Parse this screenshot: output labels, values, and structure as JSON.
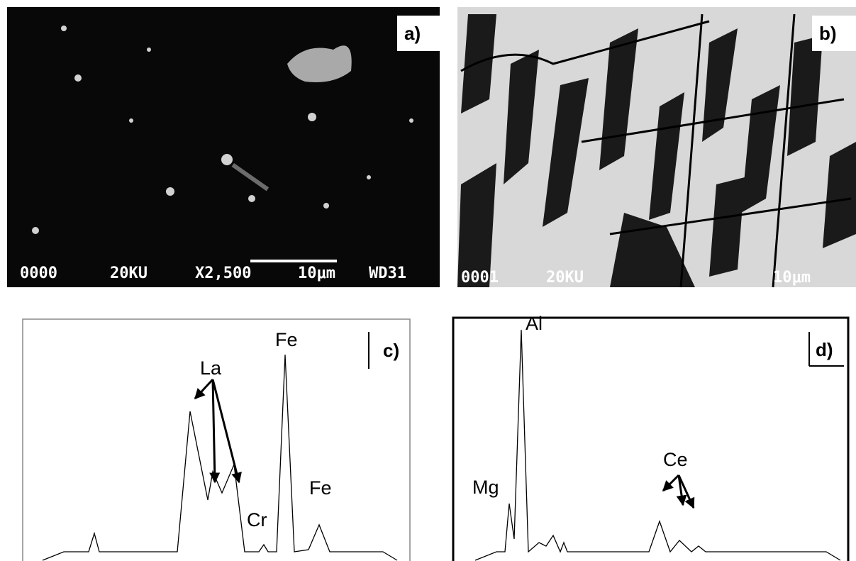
{
  "panels": [
    {
      "label": "a)",
      "overlay": [
        "0000",
        "20KU",
        "X2,500",
        "10μm",
        "WD31"
      ]
    },
    {
      "label": "b)",
      "overlay": [
        "0001",
        "20KU",
        "10μm"
      ]
    },
    {
      "label": "c)",
      "peaks": [
        "La",
        "Fe",
        "Cr",
        "Fe"
      ]
    },
    {
      "label": "d)",
      "peaks": [
        "Mg",
        "Al",
        "Ce"
      ]
    }
  ]
}
